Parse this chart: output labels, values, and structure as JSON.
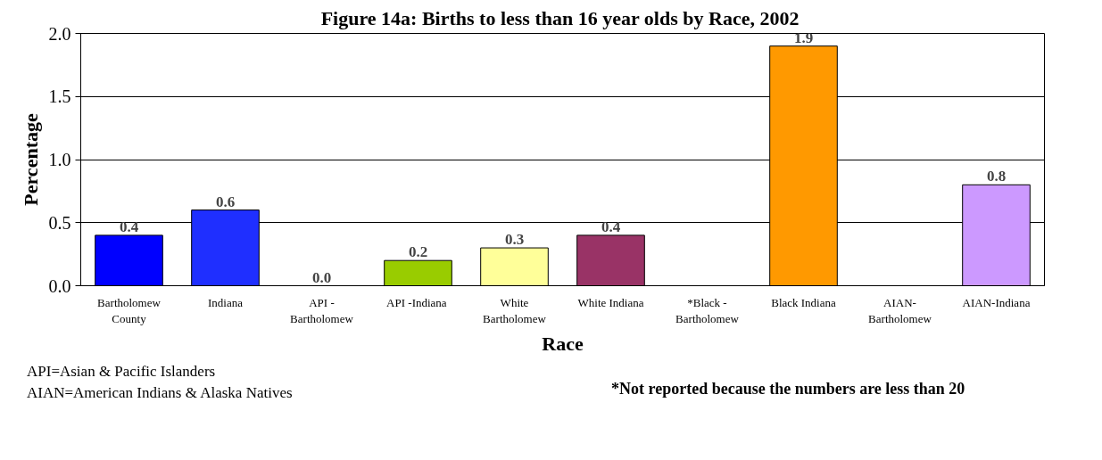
{
  "chart_data": {
    "type": "bar",
    "title": "Figure 14a:  Births to less than 16 year olds by Race, 2002",
    "xlabel": "Race",
    "ylabel": "Percentage",
    "categories": [
      "Bartholomew\nCounty",
      "Indiana",
      "API -\nBartholomew",
      "API  -Indiana",
      "White\nBartholomew",
      "White Indiana",
      "*Black -\nBartholomew",
      "Black Indiana",
      "AIAN-\nBartholomew",
      "AIAN-Indiana"
    ],
    "values": [
      0.4,
      0.6,
      0.0,
      0.2,
      0.3,
      0.4,
      null,
      1.9,
      null,
      0.8
    ],
    "colors": [
      "#0000ff",
      "#1f2fff",
      null,
      "#99cc00",
      "#ffff99",
      "#993366",
      null,
      "#ff9900",
      null,
      "#cc99ff"
    ],
    "value_labels": [
      "0.4",
      "0.6",
      "0.0",
      "0.2",
      "0.3",
      "0.4",
      null,
      "1.9",
      null,
      "0.8"
    ],
    "ylim": [
      0,
      2.0
    ],
    "yticks": [
      {
        "value": 0,
        "label": "0.0"
      },
      0.5,
      {
        "value": 1,
        "label": "1.0"
      },
      1.5,
      {
        "value": 2,
        "label": "2.0"
      }
    ],
    "grid": "y",
    "annotations": [
      "API=Asian & Pacific Islanders",
      "AIAN=American Indians & Alaska Natives",
      "*Not reported because the numbers are less than 20"
    ]
  }
}
